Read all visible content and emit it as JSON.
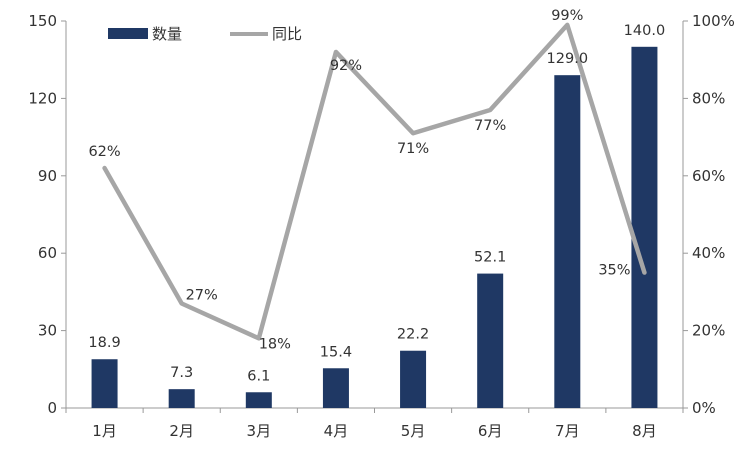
{
  "chart_data": {
    "type": "bar+line",
    "categories": [
      "1月",
      "2月",
      "3月",
      "4月",
      "5月",
      "6月",
      "7月",
      "8月"
    ],
    "series": [
      {
        "name": "数量",
        "type": "bar",
        "axis": "left",
        "values": [
          18.9,
          7.3,
          6.1,
          15.4,
          22.2,
          52.1,
          129.0,
          140.0
        ],
        "labels": [
          "18.9",
          "7.3",
          "6.1",
          "15.4",
          "22.2",
          "52.1",
          "129.0",
          "140.0"
        ]
      },
      {
        "name": "同比",
        "type": "line",
        "axis": "right",
        "values": [
          62,
          27,
          18,
          92,
          71,
          77,
          99,
          35
        ],
        "labels": [
          "62%",
          "27%",
          "18%",
          "92%",
          "71%",
          "77%",
          "99%",
          "35%"
        ]
      }
    ],
    "y_left": {
      "ticks": [
        "0",
        "30",
        "60",
        "90",
        "120",
        "150"
      ],
      "lim": [
        0,
        150
      ]
    },
    "y_right": {
      "ticks": [
        "0%",
        "20%",
        "40%",
        "60%",
        "80%",
        "100%"
      ],
      "lim": [
        0,
        100
      ]
    },
    "grid": false,
    "legend_position": "top-left",
    "colors": {
      "bar": "#1F3864",
      "line": "#A6A6A6",
      "axis": "#999999",
      "text": "#333333"
    }
  }
}
